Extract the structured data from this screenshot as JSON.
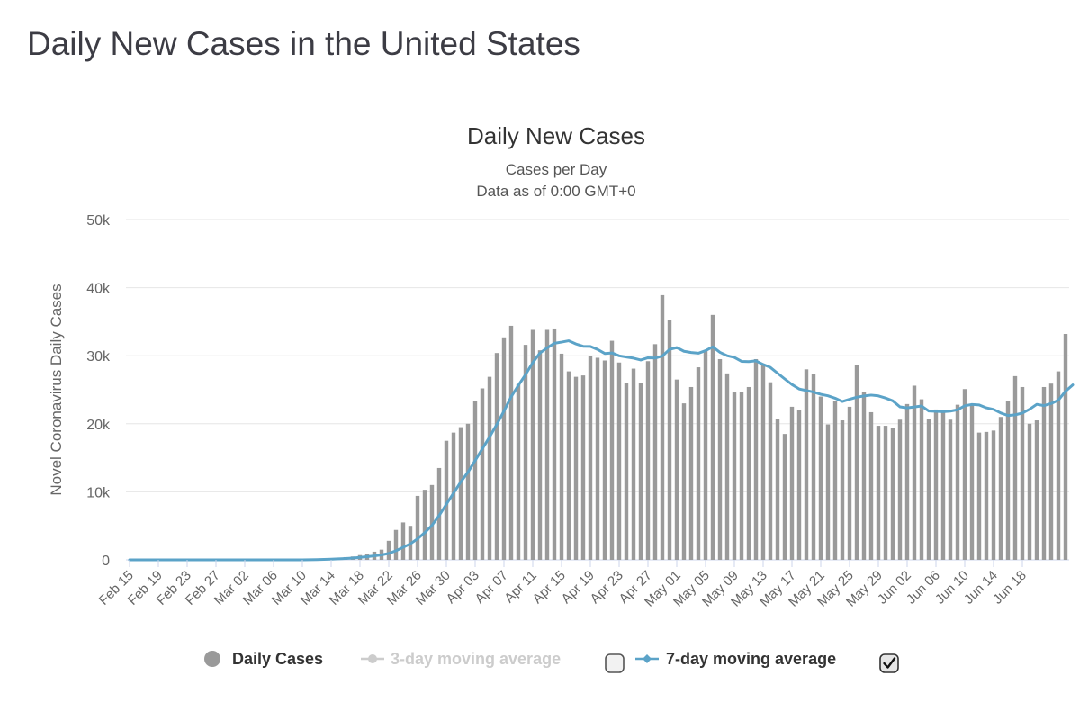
{
  "page": {
    "title": "Daily New Cases in the United States"
  },
  "chart_data": {
    "type": "bar",
    "title": "Daily New Cases",
    "subtitle_line1": "Cases per Day",
    "subtitle_line2": "Data as of 0:00 GMT+0",
    "xlabel": "",
    "ylabel": "Novel Coronavirus Daily Cases",
    "ylim": [
      0,
      50000
    ],
    "y_ticks": [
      {
        "value": 0,
        "label": "0"
      },
      {
        "value": 10000,
        "label": "10k"
      },
      {
        "value": 20000,
        "label": "20k"
      },
      {
        "value": 30000,
        "label": "30k"
      },
      {
        "value": 40000,
        "label": "40k"
      },
      {
        "value": 50000,
        "label": "50k"
      }
    ],
    "grid": true,
    "start_date": "Feb 15",
    "x_tick_labels": [
      "Feb 15",
      "Feb 19",
      "Feb 23",
      "Feb 27",
      "Mar 02",
      "Mar 06",
      "Mar 10",
      "Mar 14",
      "Mar 18",
      "Mar 22",
      "Mar 26",
      "Mar 30",
      "Apr 03",
      "Apr 07",
      "Apr 11",
      "Apr 15",
      "Apr 19",
      "Apr 23",
      "Apr 27",
      "May 01",
      "May 05",
      "May 09",
      "May 13",
      "May 17",
      "May 21",
      "May 25",
      "May 29",
      "Jun 02",
      "Jun 06",
      "Jun 10",
      "Jun 14",
      "Jun 18"
    ],
    "x_tick_every": 4,
    "series": [
      {
        "name": "Daily Cases",
        "color": "#9a9a9a",
        "values": [
          0,
          0,
          0,
          0,
          0,
          0,
          0,
          0,
          0,
          0,
          0,
          0,
          0,
          0,
          0,
          0,
          0,
          0,
          0,
          0,
          0,
          0,
          0,
          0,
          0,
          100,
          150,
          200,
          250,
          300,
          400,
          500,
          700,
          900,
          1200,
          1500,
          2800,
          4400,
          5500,
          5000,
          9400,
          10300,
          11000,
          13500,
          17500,
          18700,
          19500,
          20000,
          23300,
          25200,
          26900,
          30400,
          32700,
          34400,
          25800,
          31600,
          33800,
          30800,
          33800,
          34000,
          30300,
          27700,
          26900,
          27100,
          30000,
          29700,
          29300,
          32200,
          29000,
          26000,
          28100,
          26000,
          29200,
          31700,
          38900,
          35300,
          26500,
          23000,
          25400,
          28300,
          30700,
          36000,
          29500,
          27400,
          24600,
          24700,
          25400,
          29500,
          28800,
          26100,
          20700,
          18500,
          22500,
          22000,
          28000,
          27300,
          24000,
          19900,
          23400,
          20500,
          22500,
          28600,
          24700,
          21700,
          19700,
          19700,
          19400,
          20600,
          22900,
          25600,
          23600,
          20700,
          22100,
          22000,
          20600,
          22800,
          25100,
          22800,
          18700,
          18800,
          19000,
          21000,
          23300,
          27000,
          25400,
          20000,
          20500,
          25400,
          25900,
          27700,
          33200
        ]
      },
      {
        "name": "3-day moving average",
        "color": "#cccccc",
        "enabled": false
      },
      {
        "name": "7-day moving average",
        "color": "#5ba3c8",
        "enabled": true,
        "values": [
          0,
          0,
          0,
          0,
          0,
          0,
          0,
          0,
          0,
          0,
          0,
          0,
          0,
          0,
          0,
          0,
          0,
          0,
          0,
          0,
          0,
          0,
          0,
          0,
          0,
          14,
          36,
          64,
          100,
          143,
          200,
          271,
          357,
          457,
          586,
          729,
          943,
          1343,
          1843,
          2357,
          3100,
          4000,
          5071,
          6514,
          8171,
          9814,
          11443,
          12886,
          14586,
          16329,
          18057,
          19886,
          21871,
          23971,
          25643,
          27229,
          28986,
          30400,
          31157,
          31829,
          32000,
          32200,
          31729,
          31386,
          31371,
          30929,
          30329,
          30414,
          29986,
          29814,
          29643,
          29371,
          29700,
          29657,
          29957,
          30929,
          31200,
          30657,
          30471,
          30371,
          30743,
          31314,
          30500,
          30000,
          29757,
          29171,
          29129,
          29243,
          28714,
          28286,
          27429,
          26586,
          25771,
          25114,
          24886,
          24657,
          24329,
          24114,
          23757,
          23271,
          23600,
          23900,
          24086,
          24214,
          24100,
          23786,
          23371,
          22486,
          22343,
          22471,
          22614,
          21871,
          21829,
          21771,
          21857,
          22057,
          22643,
          22843,
          22771,
          22343,
          22114,
          21586,
          21214,
          21314,
          21571,
          22129,
          22857,
          22671,
          22971,
          23471,
          24786,
          25714
        ]
      }
    ],
    "legend": {
      "position": "bottom",
      "items": [
        {
          "label": "Daily Cases",
          "active": true
        },
        {
          "label": "3-day moving average",
          "active": false,
          "checkbox": false
        },
        {
          "label": "7-day moving average",
          "active": true,
          "checkbox": true
        }
      ]
    }
  }
}
